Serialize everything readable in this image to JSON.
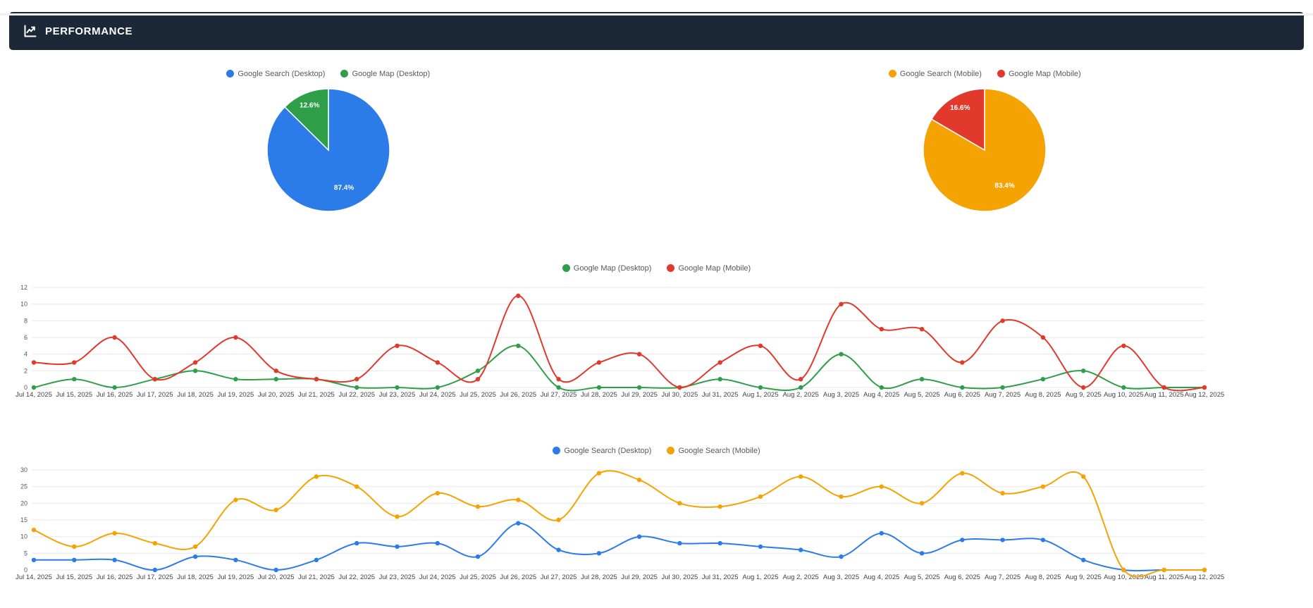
{
  "header": {
    "title": "PERFORMANCE"
  },
  "colors": {
    "header_bg": "#1c2738",
    "blue": "#2B7CE9",
    "green": "#2F9E49",
    "red": "#E1392B",
    "orange": "#F5A302",
    "grid": "#e7e7e7",
    "axis_text": "#55585c"
  },
  "dates": [
    "Jul 14, 2025",
    "Jul 15, 2025",
    "Jul 16, 2025",
    "Jul 17, 2025",
    "Jul 18, 2025",
    "Jul 19, 2025",
    "Jul 20, 2025",
    "Jul 21, 2025",
    "Jul 22, 2025",
    "Jul 23, 2025",
    "Jul 24, 2025",
    "Jul 25, 2025",
    "Jul 26, 2025",
    "Jul 27, 2025",
    "Jul 28, 2025",
    "Jul 29, 2025",
    "Jul 30, 2025",
    "Jul 31, 2025",
    "Aug 1, 2025",
    "Aug 2, 2025",
    "Aug 3, 2025",
    "Aug 4, 2025",
    "Aug 5, 2025",
    "Aug 6, 2025",
    "Aug 7, 2025",
    "Aug 8, 2025",
    "Aug 9, 2025",
    "Aug 10, 2025",
    "Aug 11, 2025",
    "Aug 12, 2025"
  ],
  "chart_data": [
    {
      "id": "pie-desktop",
      "type": "pie",
      "legend_position": "top",
      "slices": [
        {
          "label": "Google Search (Desktop)",
          "value": 87.4,
          "display": "87.4%",
          "color_key": "blue"
        },
        {
          "label": "Google Map (Desktop)",
          "value": 12.6,
          "display": "12.6%",
          "color_key": "green"
        }
      ]
    },
    {
      "id": "pie-mobile",
      "type": "pie",
      "legend_position": "top",
      "slices": [
        {
          "label": "Google Search (Mobile)",
          "value": 83.4,
          "display": "83.4%",
          "color_key": "orange"
        },
        {
          "label": "Google Map (Mobile)",
          "value": 16.6,
          "display": "16.6%",
          "color_key": "red"
        }
      ]
    },
    {
      "id": "map-lines",
      "type": "line",
      "title": "",
      "xlabel": "",
      "ylabel": "",
      "legend_position": "top",
      "grid": true,
      "ylim": [
        0,
        12
      ],
      "yticks": [
        0,
        2,
        4,
        6,
        8,
        10,
        12
      ],
      "categories": [
        "Jul 14, 2025",
        "Jul 15, 2025",
        "Jul 16, 2025",
        "Jul 17, 2025",
        "Jul 18, 2025",
        "Jul 19, 2025",
        "Jul 20, 2025",
        "Jul 21, 2025",
        "Jul 22, 2025",
        "Jul 23, 2025",
        "Jul 24, 2025",
        "Jul 25, 2025",
        "Jul 26, 2025",
        "Jul 27, 2025",
        "Jul 28, 2025",
        "Jul 29, 2025",
        "Jul 30, 2025",
        "Jul 31, 2025",
        "Aug 1, 2025",
        "Aug 2, 2025",
        "Aug 3, 2025",
        "Aug 4, 2025",
        "Aug 5, 2025",
        "Aug 6, 2025",
        "Aug 7, 2025",
        "Aug 8, 2025",
        "Aug 9, 2025",
        "Aug 10, 2025",
        "Aug 11, 2025",
        "Aug 12, 2025"
      ],
      "series": [
        {
          "name": "Google Map (Desktop)",
          "color_key": "green",
          "values": [
            0,
            1,
            0,
            1,
            2,
            1,
            1,
            1,
            0,
            0,
            0,
            2,
            5,
            0,
            0,
            0,
            0,
            1,
            0,
            0,
            4,
            0,
            1,
            0,
            0,
            1,
            2,
            0,
            0,
            0
          ]
        },
        {
          "name": "Google Map (Mobile)",
          "color_key": "red",
          "values": [
            3,
            3,
            6,
            1,
            3,
            6,
            2,
            1,
            1,
            5,
            3,
            1,
            11,
            1,
            3,
            4,
            0,
            3,
            5,
            1,
            10,
            7,
            7,
            3,
            8,
            6,
            0,
            5,
            0,
            0
          ]
        }
      ]
    },
    {
      "id": "search-lines",
      "type": "line",
      "title": "",
      "xlabel": "",
      "ylabel": "",
      "legend_position": "top",
      "grid": true,
      "ylim": [
        0,
        30
      ],
      "yticks": [
        0,
        5,
        10,
        15,
        20,
        25,
        30
      ],
      "categories": [
        "Jul 14, 2025",
        "Jul 15, 2025",
        "Jul 16, 2025",
        "Jul 17, 2025",
        "Jul 18, 2025",
        "Jul 19, 2025",
        "Jul 20, 2025",
        "Jul 21, 2025",
        "Jul 22, 2025",
        "Jul 23, 2025",
        "Jul 24, 2025",
        "Jul 25, 2025",
        "Jul 26, 2025",
        "Jul 27, 2025",
        "Jul 28, 2025",
        "Jul 29, 2025",
        "Jul 30, 2025",
        "Jul 31, 2025",
        "Aug 1, 2025",
        "Aug 2, 2025",
        "Aug 3, 2025",
        "Aug 4, 2025",
        "Aug 5, 2025",
        "Aug 6, 2025",
        "Aug 7, 2025",
        "Aug 8, 2025",
        "Aug 9, 2025",
        "Aug 10, 2025",
        "Aug 11, 2025",
        "Aug 12, 2025"
      ],
      "series": [
        {
          "name": "Google Search (Desktop)",
          "color_key": "blue",
          "values": [
            3,
            3,
            3,
            0,
            4,
            3,
            0,
            3,
            8,
            7,
            8,
            4,
            14,
            6,
            5,
            10,
            8,
            8,
            7,
            6,
            4,
            11,
            5,
            9,
            9,
            9,
            3,
            0,
            0,
            0
          ]
        },
        {
          "name": "Google Search (Mobile)",
          "color_key": "orange",
          "values": [
            12,
            7,
            11,
            8,
            7,
            21,
            18,
            28,
            25,
            16,
            23,
            19,
            21,
            15,
            29,
            27,
            20,
            19,
            22,
            28,
            22,
            25,
            20,
            29,
            23,
            25,
            28,
            0,
            0,
            0
          ]
        }
      ]
    }
  ]
}
